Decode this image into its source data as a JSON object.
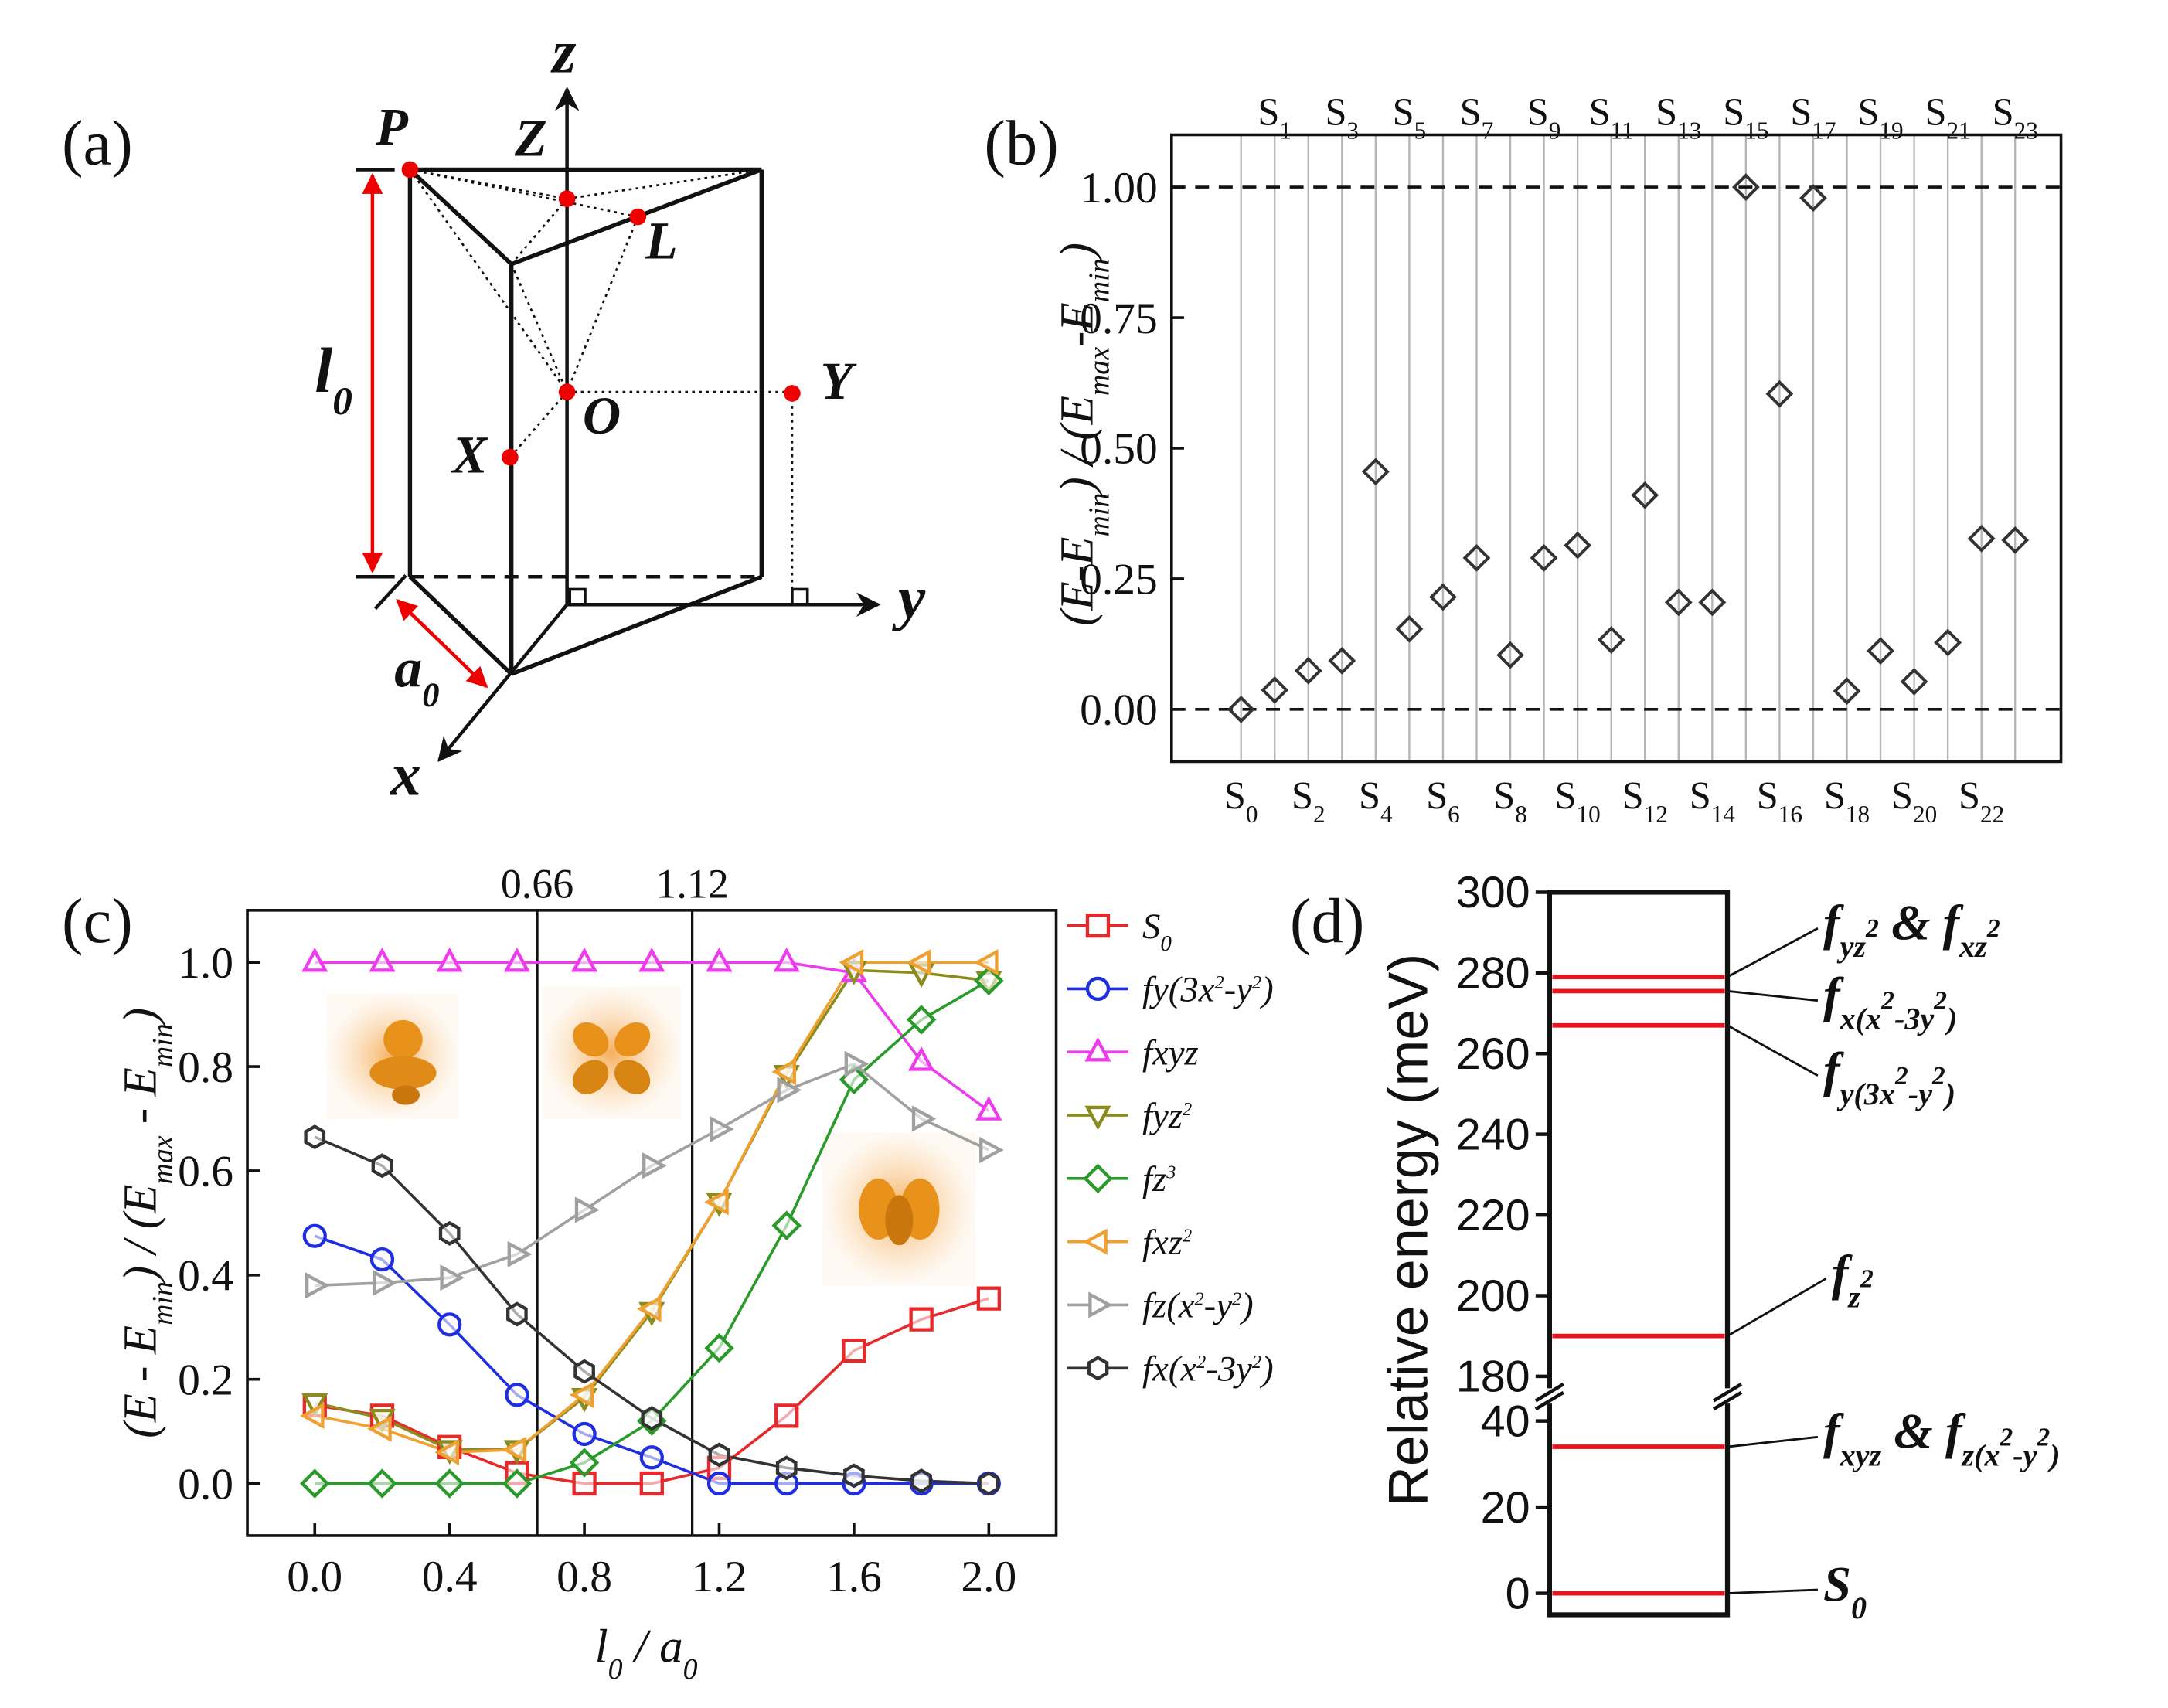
{
  "diagram": {
    "panel_label": "(a)",
    "axis_labels": [
      "x",
      "y",
      "z"
    ],
    "point_labels": [
      "P",
      "Z",
      "L",
      "O",
      "X",
      "Y"
    ],
    "dimension_labels": [
      "l0",
      "a0"
    ]
  },
  "chart_data": [
    {
      "type": "scatter",
      "panel_label": "(b)",
      "ylabel": "(E-Emin) / (Emax-Emin)",
      "categories": [
        "S0",
        "S1",
        "S2",
        "S3",
        "S4",
        "S5",
        "S6",
        "S7",
        "S8",
        "S9",
        "S10",
        "S11",
        "S12",
        "S13",
        "S14",
        "S15",
        "S16",
        "S17",
        "S18",
        "S19",
        "S20",
        "S21",
        "S22",
        "S23"
      ],
      "values": [
        0,
        0.037,
        0.074,
        0.093,
        0.455,
        0.154,
        0.215,
        0.29,
        0.104,
        0.29,
        0.314,
        0.133,
        0.41,
        0.205,
        0.205,
        1.0,
        0.604,
        0.979,
        0.035,
        0.112,
        0.053,
        0.128,
        0.327,
        0.324
      ],
      "color": "#333333",
      "marker": "diamond",
      "category_grid": true,
      "hlines": [
        0,
        1
      ],
      "ylim": [
        -0.1,
        1.1
      ],
      "yticks": [
        {
          "value": 0,
          "label": "0.00"
        },
        0.25,
        {
          "value": 0.5,
          "label": "0.50"
        },
        0.75,
        {
          "value": 1,
          "label": "1.00"
        }
      ]
    },
    {
      "type": "line",
      "panel_label": "(c)",
      "xlabel": "l0 / a0",
      "ylabel": "(E - Emin) / (Emax - Emin)",
      "x": [
        0,
        0.2,
        0.4,
        0.6,
        0.8,
        1.0,
        1.2,
        1.4,
        1.6,
        1.8,
        2.0
      ],
      "xlim": [
        -0.2,
        2.2
      ],
      "xticks": [
        {
          "value": 0,
          "label": "0.0"
        },
        0.4,
        0.8,
        1.2,
        1.6,
        {
          "value": 2,
          "label": "2.0"
        }
      ],
      "ylim": [
        -0.1,
        1.1
      ],
      "yticks": [
        {
          "value": 0,
          "label": "0.0"
        },
        0.2,
        0.4,
        0.6,
        0.8,
        {
          "value": 1,
          "label": "1.0"
        }
      ],
      "vlines": [
        0.66,
        1.12
      ],
      "series": [
        {
          "name": "S0",
          "color": "#e8292b",
          "marker": "square",
          "values": [
            0.15,
            0.13,
            0.07,
            0.02,
            0.0,
            0.0,
            0.03,
            0.13,
            0.255,
            0.315,
            0.355
          ]
        },
        {
          "name": "fy(3x2-y2)",
          "color": "#1f2ee0",
          "marker": "circle",
          "values": [
            0.475,
            0.43,
            0.305,
            0.17,
            0.095,
            0.05,
            0.0,
            0.0,
            0.0,
            0.0,
            0.0
          ]
        },
        {
          "name": "fxyz",
          "color": "#ee3bee",
          "marker": "triangle-up",
          "values": [
            1,
            1,
            1,
            1,
            1,
            1,
            1,
            1,
            0.98,
            0.81,
            0.715
          ]
        },
        {
          "name": "fyz2",
          "color": "#8c8c1c",
          "marker": "triangle-down",
          "values": [
            0.155,
            0.125,
            0.065,
            0.065,
            0.165,
            0.33,
            0.54,
            0.785,
            0.985,
            0.98,
            0.965
          ]
        },
        {
          "name": "fz3",
          "color": "#2a9a2a",
          "marker": "diamond",
          "values": [
            0,
            0,
            0,
            0,
            0.04,
            0.12,
            0.26,
            0.495,
            0.775,
            0.89,
            0.965
          ]
        },
        {
          "name": "fxz2",
          "color": "#f0a030",
          "marker": "triangle-left",
          "values": [
            0.13,
            0.105,
            0.06,
            0.065,
            0.17,
            0.335,
            0.54,
            0.79,
            1.0,
            1.0,
            1.0
          ]
        },
        {
          "name": "fz(x2-y2)",
          "color": "#a0a0a0",
          "marker": "triangle-right",
          "values": [
            0.38,
            0.385,
            0.395,
            0.44,
            0.525,
            0.61,
            0.68,
            0.755,
            0.805,
            0.7,
            0.64
          ]
        },
        {
          "name": "fx(x2-3y2)",
          "color": "#333333",
          "marker": "hexagon",
          "values": [
            0.665,
            0.61,
            0.48,
            0.325,
            0.215,
            0.125,
            0.055,
            0.03,
            0.015,
            0.005,
            0.0
          ]
        }
      ]
    },
    {
      "type": "levels",
      "panel_label": "(d)",
      "ylabel": "Relative energy (meV)",
      "values": [
        0,
        34,
        190,
        267,
        275.5,
        279
      ],
      "labels": [
        "S0",
        "fxyz & fz(x2-y2)",
        "fz2",
        "fy(3x2-y2)",
        "fx(x2-3y2)",
        "fyz2 & fxz2"
      ],
      "color": "#e8141c",
      "segments": [
        {
          "ylim": [
            -5,
            45
          ],
          "yticks": [
            0,
            20,
            40
          ]
        },
        {
          "ylim": [
            176,
            300
          ],
          "yticks": [
            180,
            200,
            220,
            240,
            260,
            280,
            300
          ]
        }
      ]
    }
  ]
}
